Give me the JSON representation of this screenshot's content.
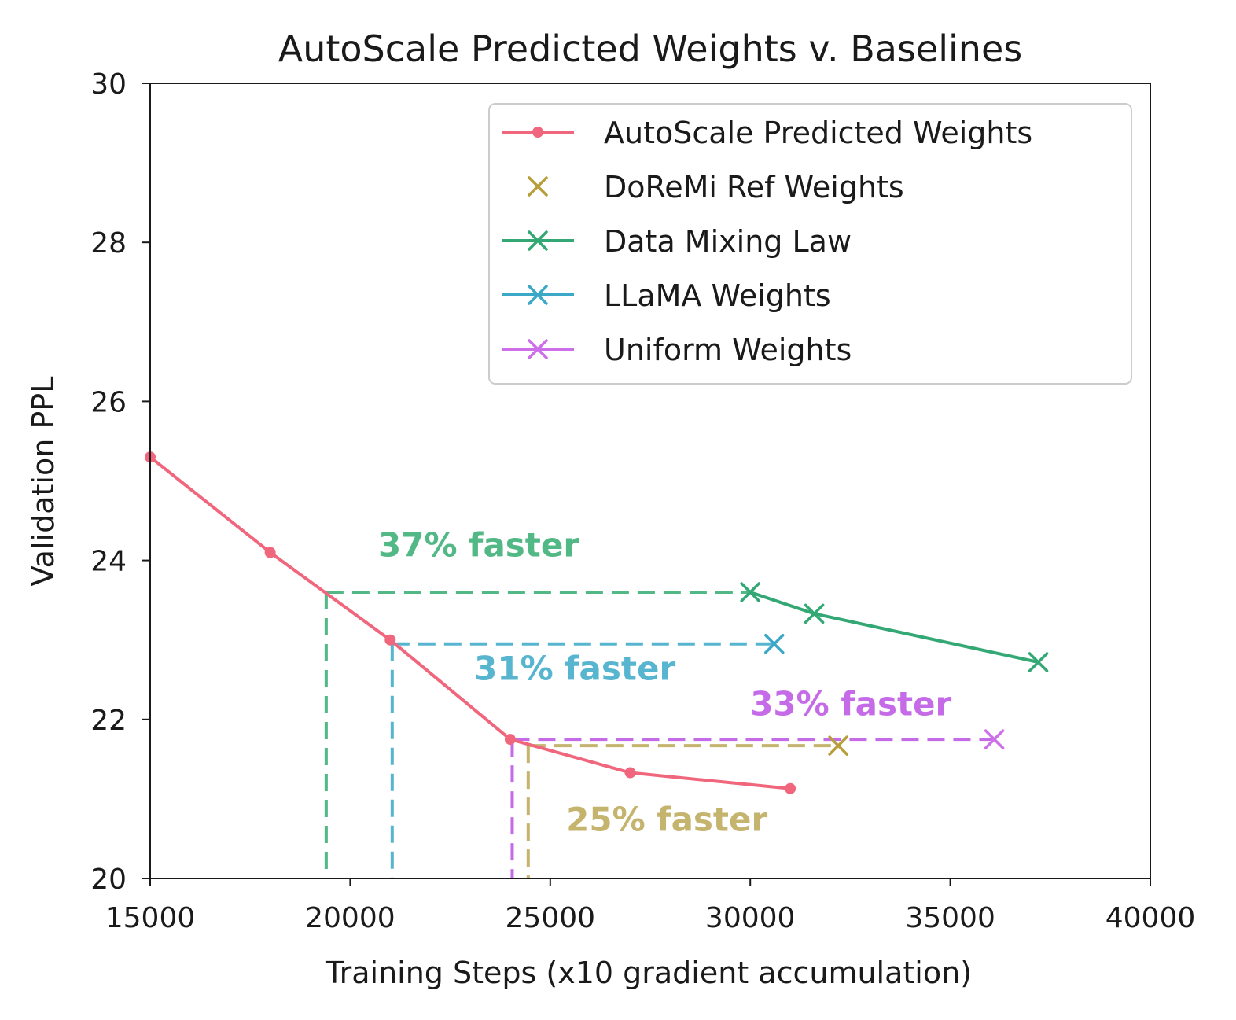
{
  "chart_data": {
    "type": "line",
    "title": "AutoScale Predicted Weights v. Baselines",
    "xlabel": "Training Steps (x10 gradient accumulation)",
    "ylabel": "Validation PPL",
    "xlim": [
      15000,
      40000
    ],
    "ylim": [
      20,
      30
    ],
    "xticks": [
      15000,
      20000,
      25000,
      30000,
      35000,
      40000
    ],
    "yticks": [
      20,
      22,
      24,
      26,
      28,
      30
    ],
    "legend_position": "top-right",
    "series": [
      {
        "name": "AutoScale Predicted Weights",
        "color": "#f0677d",
        "marker": "dot",
        "line": true,
        "x": [
          15000,
          18000,
          21000,
          24000,
          27000,
          31000
        ],
        "y": [
          25.3,
          24.1,
          23.0,
          21.75,
          21.33,
          21.13
        ]
      },
      {
        "name": "DoReMi Ref Weights",
        "color": "#b89e3a",
        "marker": "x",
        "line": false,
        "x": [
          32200
        ],
        "y": [
          21.67
        ]
      },
      {
        "name": "Data Mixing Law",
        "color": "#33a874",
        "marker": "x",
        "line": true,
        "x": [
          30000,
          31600,
          37200
        ],
        "y": [
          23.6,
          23.33,
          22.72
        ]
      },
      {
        "name": "LLaMA Weights",
        "color": "#3ca8c8",
        "marker": "x",
        "line": true,
        "x": [
          30600
        ],
        "y": [
          22.95
        ]
      },
      {
        "name": "Uniform Weights",
        "color": "#cc6fe8",
        "marker": "x",
        "line": true,
        "x": [
          36100
        ],
        "y": [
          21.75
        ]
      }
    ],
    "annotations": [
      {
        "text": "37% faster",
        "color": "#52b886",
        "from_x": 19400,
        "to_x": 30000,
        "y": 23.6,
        "label_x": 20700,
        "label_y": 24.05
      },
      {
        "text": "31% faster",
        "color": "#58b5d0",
        "from_x": 21050,
        "to_x": 30600,
        "y": 22.95,
        "label_x": 23100,
        "label_y": 22.5
      },
      {
        "text": "33% faster",
        "color": "#c56be8",
        "from_x": 24050,
        "to_x": 36100,
        "y": 21.75,
        "label_x": 30000,
        "label_y": 22.05
      },
      {
        "text": "25% faster",
        "color": "#c4b46e",
        "from_x": 24450,
        "to_x": 32200,
        "y": 21.67,
        "label_x": 25400,
        "label_y": 20.6
      }
    ]
  }
}
